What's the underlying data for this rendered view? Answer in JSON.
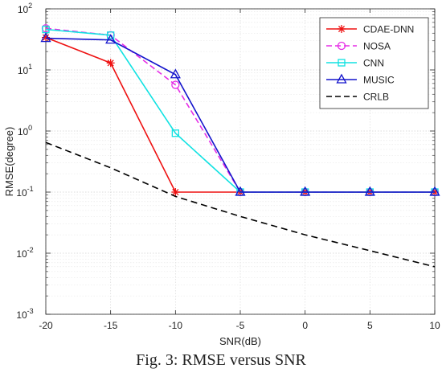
{
  "caption": "Fig. 3: RMSE versus SNR",
  "chart_data": {
    "type": "line",
    "xlabel": "SNR(dB)",
    "ylabel": "RMSE(degree)",
    "x": [
      -20,
      -15,
      -10,
      -5,
      0,
      5,
      10
    ],
    "x_ticks": [
      -20,
      -15,
      -10,
      -5,
      0,
      5,
      10
    ],
    "xlim": [
      -20,
      10
    ],
    "ylim": [
      0.001,
      100
    ],
    "yscale": "log",
    "y_tick_bases": [
      "10",
      "10",
      "10",
      "10",
      "10",
      "10"
    ],
    "y_tick_exponents": [
      "-3",
      "-2",
      "-1",
      "0",
      "1",
      "2"
    ],
    "grid": true,
    "legend_position": "top-right",
    "series": [
      {
        "name": "CDAE-DNN",
        "color": "#ee1111",
        "dash": "solid",
        "marker": "star",
        "values": [
          34,
          13,
          0.1,
          0.1,
          0.1,
          0.1,
          0.1
        ]
      },
      {
        "name": "NOSA",
        "color": "#e62ee6",
        "dash": "dashed",
        "marker": "circle",
        "values": [
          48,
          37,
          5.7,
          0.1,
          0.1,
          0.1,
          0.1
        ]
      },
      {
        "name": "CNN",
        "color": "#11e2e2",
        "dash": "solid",
        "marker": "square",
        "values": [
          46,
          37,
          0.92,
          0.1,
          0.1,
          0.1,
          0.1
        ]
      },
      {
        "name": "MUSIC",
        "color": "#1414cc",
        "dash": "solid",
        "marker": "triangle",
        "values": [
          33,
          31,
          8.4,
          0.1,
          0.1,
          0.1,
          0.1
        ]
      },
      {
        "name": "CRLB",
        "color": "#000000",
        "dash": "dashed",
        "marker": "none",
        "values": [
          0.65,
          0.25,
          0.085,
          0.04,
          0.02,
          0.011,
          0.006
        ]
      }
    ]
  }
}
